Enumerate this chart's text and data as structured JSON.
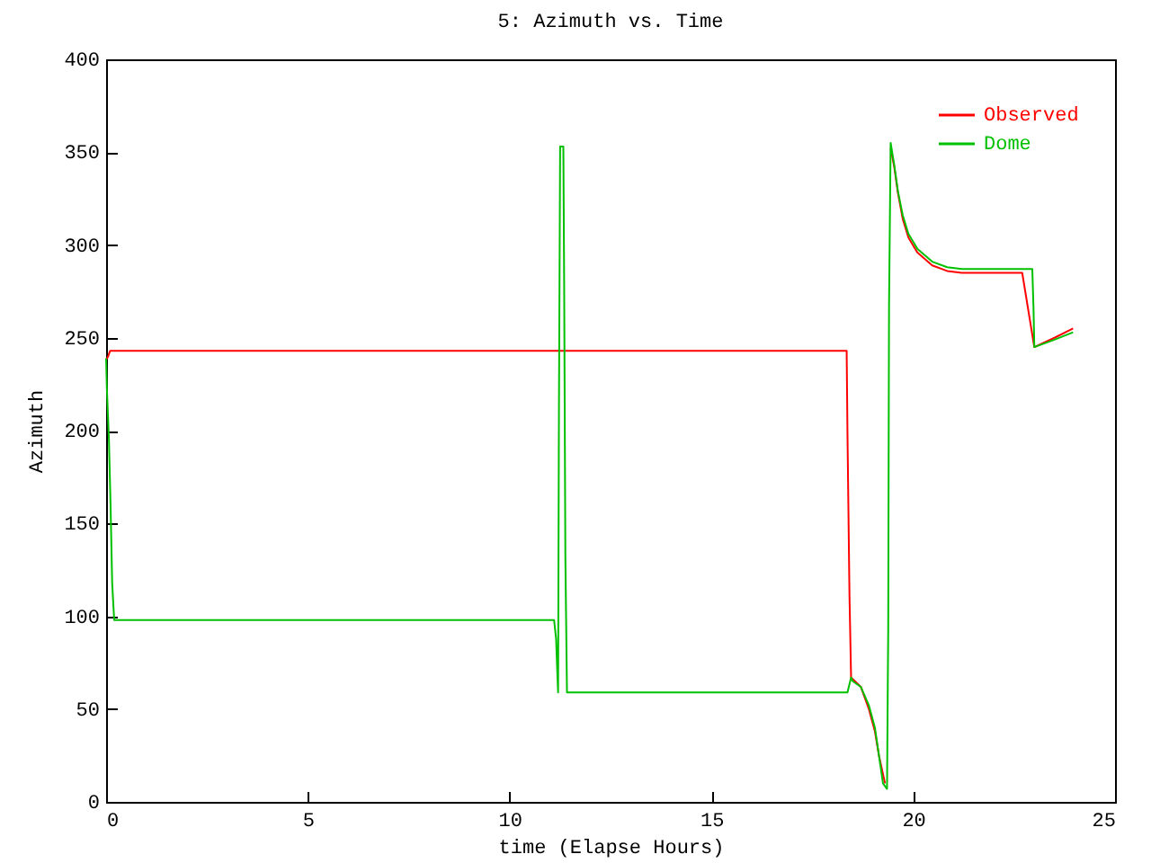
{
  "chart_data": {
    "type": "line",
    "title": "5: Azimuth vs. Time",
    "xlabel": "time (Elapse Hours)",
    "ylabel": "Azimuth",
    "xlim": [
      0,
      25
    ],
    "xticks": [
      0,
      5,
      10,
      15,
      20,
      25
    ],
    "ylim": [
      0,
      400
    ],
    "yticks": [
      0,
      50,
      100,
      150,
      200,
      250,
      300,
      350,
      400
    ],
    "legend": "top right",
    "series": [
      {
        "name": "Observed",
        "color": "#ff0000",
        "x": [
          0,
          0.05,
          0.1,
          18.35,
          18.37,
          18.42,
          18.46,
          18.7,
          18.9,
          19.05,
          19.15,
          19.3,
          19.38,
          19.4,
          19.44,
          19.53,
          19.62,
          19.74,
          19.88,
          20.1,
          20.47,
          20.84,
          21.2,
          22.7,
          23.0,
          23.5,
          23.96
        ],
        "values": [
          238,
          240,
          243,
          243,
          199,
          111,
          67,
          62,
          50,
          38,
          25,
          10,
          null,
          null,
          352,
          342,
          328,
          314,
          304,
          296,
          289,
          286,
          285,
          285,
          245,
          250,
          255
        ]
      },
      {
        "name": "Dome",
        "color": "#00c000",
        "x": [
          0,
          0.02,
          0.07,
          0.11,
          0.15,
          0.2,
          11.1,
          11.15,
          11.18,
          11.2,
          11.22,
          11.25,
          11.33,
          11.35,
          11.38,
          11.42,
          18.37,
          18.46,
          18.5,
          18.7,
          18.9,
          19.05,
          19.15,
          19.25,
          19.35,
          19.38,
          19.4,
          19.44,
          19.53,
          19.62,
          19.74,
          19.88,
          20.1,
          20.47,
          20.84,
          21.21,
          22.95,
          22.98,
          23.0,
          23.5,
          23.96
        ],
        "values": [
          239,
          222,
          195,
          160,
          118,
          98,
          98,
          88,
          70,
          59,
          206,
          353,
          353,
          279,
          132,
          59,
          59,
          67,
          65,
          62,
          52,
          40,
          25,
          10,
          7,
          93,
          267,
          355,
          343,
          329,
          316,
          306,
          298,
          291,
          288,
          287,
          287,
          266,
          245,
          249,
          253
        ]
      }
    ]
  }
}
